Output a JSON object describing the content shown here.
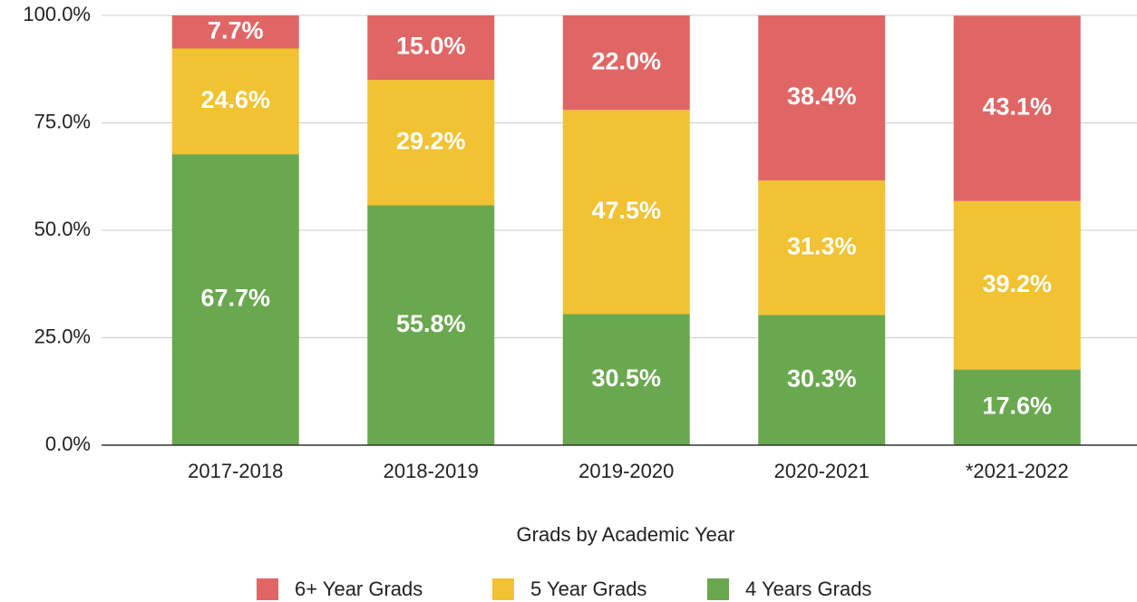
{
  "chart_data": {
    "type": "stacked_bar",
    "x_label": "Grads by Academic Year",
    "categories": [
      "2017-2018",
      "2018-2019",
      "2019-2020",
      "2020-2021",
      "*2021-2022"
    ],
    "series": [
      {
        "name": "4 Years Grads",
        "color": "#6aa84f",
        "values": [
          67.7,
          55.8,
          30.5,
          30.3,
          17.6
        ],
        "value_labels": [
          "67.7%",
          "55.8%",
          "30.5%",
          "30.3%",
          "17.6%"
        ]
      },
      {
        "name": "5 Year Grads",
        "color": "#f1c232",
        "values": [
          24.6,
          29.2,
          47.5,
          31.3,
          39.2
        ],
        "value_labels": [
          "24.6%",
          "29.2%",
          "47.5%",
          "31.3%",
          "39.2%"
        ]
      },
      {
        "name": "6+ Year Grads",
        "color": "#e06666",
        "values": [
          7.7,
          15.0,
          22.0,
          38.4,
          43.1
        ],
        "value_labels": [
          "7.7%",
          "15.0%",
          "22.0%",
          "38.4%",
          "43.1%"
        ]
      }
    ],
    "ylim": [
      0,
      100
    ],
    "yticks": [
      {
        "value": 0,
        "label": "0.0%"
      },
      {
        "value": 25,
        "label": "25.0%"
      },
      {
        "value": 50,
        "label": "50.0%"
      },
      {
        "value": 75,
        "label": "75.0%"
      },
      {
        "value": 100,
        "label": "100.0%"
      }
    ],
    "grid": true,
    "legend": "bottom"
  }
}
